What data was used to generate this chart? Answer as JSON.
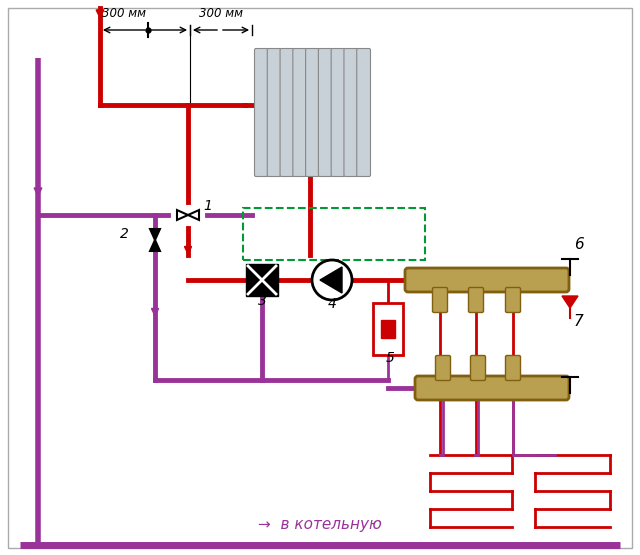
{
  "bg_color": "#ffffff",
  "supply_color": "#cc0000",
  "return_color": "#993399",
  "manifold_color": "#b8a050",
  "manifold_edge": "#806010",
  "radiator_color": "#c8d0d8",
  "radiator_edge": "#888888",
  "dashed_color": "#009933",
  "bottom_text": "→  в котельную",
  "dim_text_left": "300 мм",
  "dim_text_right": "300 мм"
}
